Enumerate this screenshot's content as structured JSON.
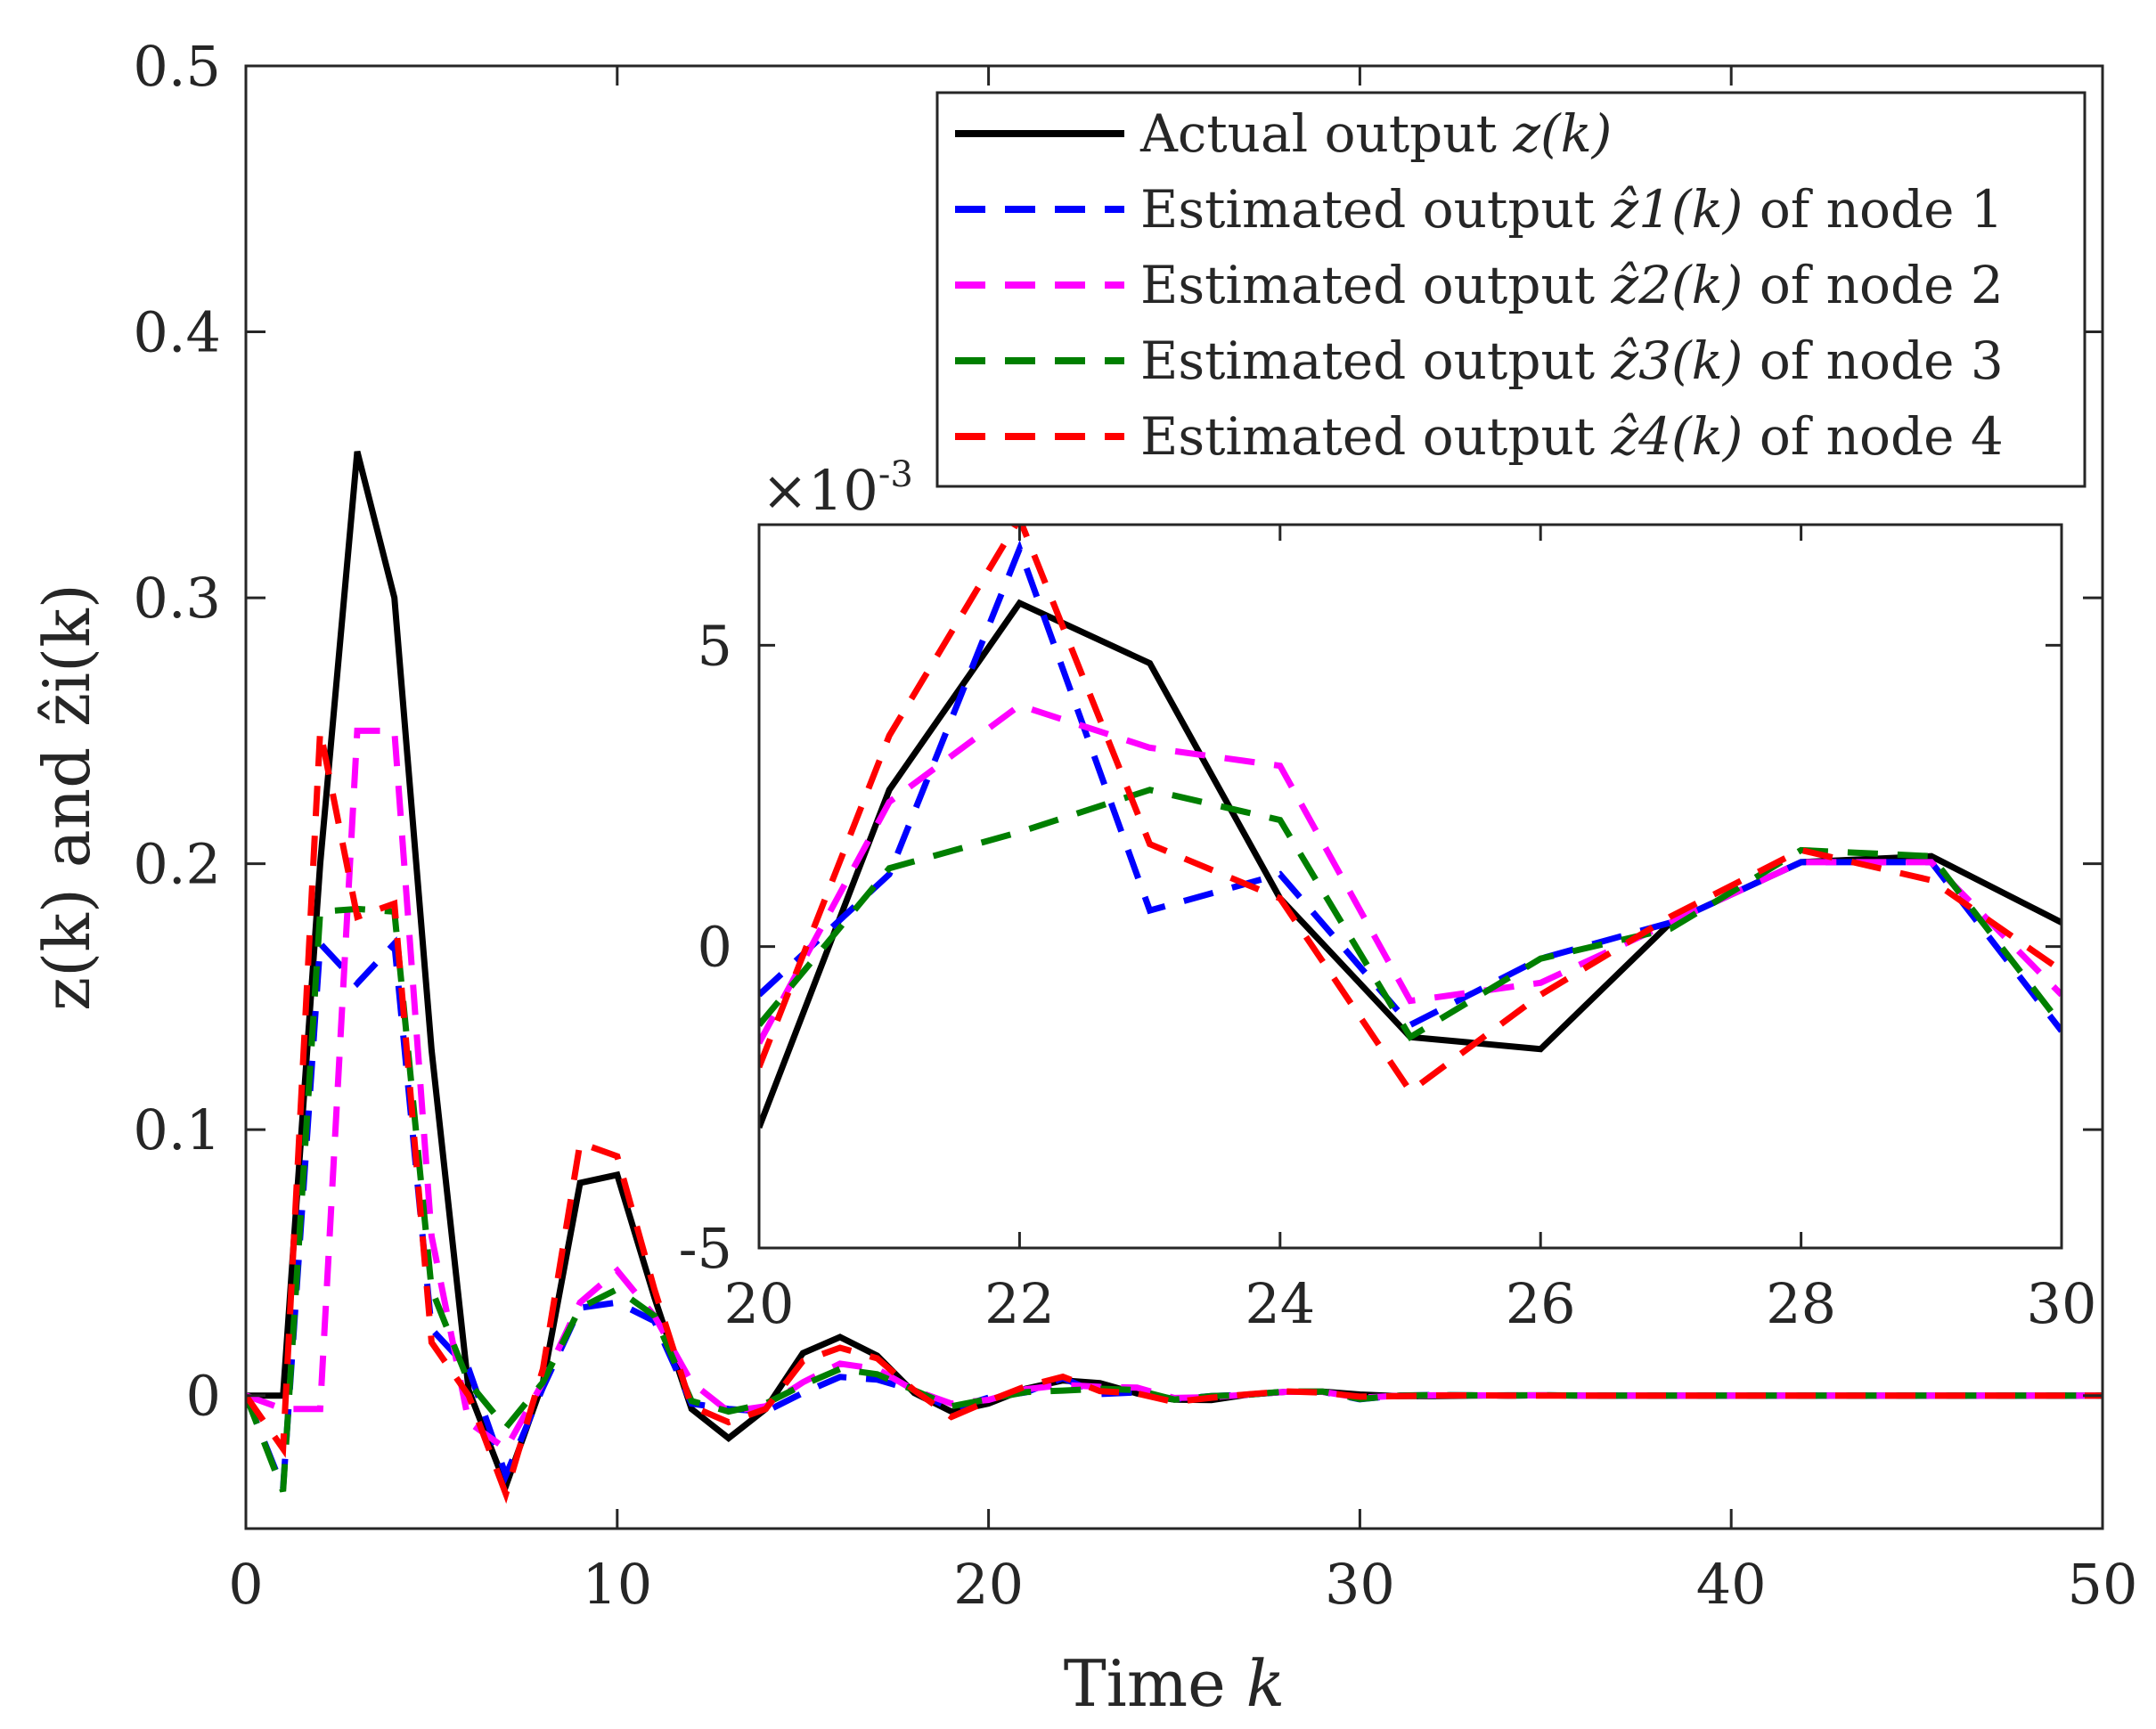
{
  "chart_data": [
    {
      "type": "line",
      "name": "main-plot",
      "xlabel_text": "Time",
      "xlabel_var": "k",
      "ylabel_text": "z(k) and ẑi(k)",
      "xlim": [
        0,
        50
      ],
      "ylim": [
        -0.05,
        0.5
      ],
      "xticks": [
        0,
        10,
        20,
        30,
        40,
        50
      ],
      "xtick_labels": [
        "0",
        "10",
        "20",
        "30",
        "40",
        "50"
      ],
      "yticks": [
        0,
        0.1,
        0.2,
        0.3,
        0.4,
        0.5
      ],
      "ytick_labels": [
        "0",
        "0.1",
        "0.2",
        "0.3",
        "0.4",
        "0.5"
      ],
      "legend_position": "top-right",
      "x": [
        0,
        1,
        2,
        3,
        4,
        5,
        6,
        7,
        8,
        9,
        10,
        11,
        12,
        13,
        14,
        15,
        16,
        17,
        18,
        19,
        20,
        21,
        22,
        23,
        24,
        25,
        26,
        27,
        28,
        29,
        30,
        31,
        32,
        33,
        34,
        35,
        36,
        37,
        38,
        39,
        40,
        41,
        42,
        43,
        44,
        45,
        46,
        47,
        48,
        49,
        50
      ],
      "series": [
        {
          "name": "Actual output",
          "label_prefix": "Actual output",
          "label_math": "z(k)",
          "label_suffix": "",
          "color": "#000000",
          "dashed": false,
          "values": [
            0,
            0,
            0.2,
            0.355,
            0.3,
            0.13,
            0.002,
            -0.034,
            0.005,
            0.08,
            0.083,
            0.037,
            -0.005,
            -0.016,
            -0.005,
            0.016,
            0.022,
            0.015,
            0.001,
            -0.006,
            -0.003,
            0.0026,
            0.0057,
            0.0047,
            0.0008,
            -0.0015,
            -0.0017,
            0.0004,
            0.0014,
            0.0015,
            0.0004,
            -0.0002,
            -0.0002,
            0,
            0.0001,
            0.0001,
            0,
            0,
            0,
            0,
            0,
            0,
            0,
            0,
            0,
            0,
            0,
            0,
            0,
            0,
            0
          ]
        },
        {
          "name": "Estimated output node 1",
          "label_prefix": "Estimated output",
          "label_math": "ẑ1(k)",
          "label_suffix": "of node 1",
          "color": "#0000FF",
          "dashed": true,
          "values": [
            0,
            -0.035,
            0.17,
            0.155,
            0.17,
            0.025,
            0.01,
            -0.03,
            0.003,
            0.033,
            0.035,
            0.028,
            -0.003,
            -0.005,
            -0.006,
            0.001,
            0.007,
            0.006,
            0.002,
            -0.005,
            -0.0008,
            0.0012,
            0.0066,
            0.0006,
            0.0012,
            -0.0013,
            -0.0002,
            0.0004,
            0.0014,
            0.0014,
            -0.0014,
            0,
            0.0002,
            0.0001,
            0,
            0.0001,
            0,
            0,
            0,
            0,
            0,
            0,
            0,
            0,
            0,
            0,
            0,
            0,
            0,
            0,
            0
          ]
        },
        {
          "name": "Estimated output node 2",
          "label_prefix": "Estimated output",
          "label_math": "ẑ2(k)",
          "label_suffix": "of node 2",
          "color": "#FF00FF",
          "dashed": true,
          "values": [
            0,
            -0.005,
            -0.005,
            0.25,
            0.25,
            0.06,
            -0.01,
            -0.02,
            0.005,
            0.035,
            0.047,
            0.03,
            0.005,
            -0.006,
            -0.004,
            0.005,
            0.012,
            0.01,
            0.002,
            -0.003,
            -0.0016,
            0.0024,
            0.004,
            0.0033,
            0.003,
            -0.0009,
            -0.0006,
            0.0004,
            0.0014,
            0.0014,
            -0.0008,
            -0.0001,
            0.0001,
            0.0001,
            0,
            0.0001,
            0,
            0,
            0,
            0,
            0,
            0,
            0,
            0,
            0,
            0,
            0,
            0,
            0,
            0,
            0
          ]
        },
        {
          "name": "Estimated output node 3",
          "label_prefix": "Estimated output",
          "label_math": "ẑ3(k)",
          "label_suffix": "of node 3",
          "color": "#007F00",
          "dashed": true,
          "values": [
            0,
            -0.036,
            0.182,
            0.183,
            0.182,
            0.04,
            0.005,
            -0.012,
            0.005,
            0.033,
            0.04,
            0.03,
            -0.002,
            -0.006,
            -0.003,
            0.004,
            0.01,
            0.008,
            0.002,
            -0.004,
            -0.0013,
            0.0013,
            0.0019,
            0.0026,
            0.0021,
            -0.0015,
            -0.0002,
            0.0003,
            0.0016,
            0.0015,
            -0.0013,
            0,
            0.0002,
            0.0001,
            0,
            0.0001,
            0,
            0,
            0,
            0,
            0,
            0,
            0,
            0,
            0,
            0,
            0,
            0,
            0,
            0,
            0
          ]
        },
        {
          "name": "Estimated output node 4",
          "label_prefix": "Estimated output",
          "label_math": "ẑ4(k)",
          "label_suffix": "of node 4",
          "color": "#FF0000",
          "dashed": true,
          "values": [
            0,
            -0.02,
            0.25,
            0.18,
            0.185,
            0.02,
            0,
            -0.037,
            0.01,
            0.095,
            0.09,
            0.04,
            -0.004,
            -0.01,
            -0.005,
            0.013,
            0.018,
            0.014,
            0.002,
            -0.008,
            -0.002,
            0.0035,
            0.0071,
            0.0017,
            0.0008,
            -0.0024,
            -0.0008,
            0.0005,
            0.0016,
            0.0011,
            -0.0004,
            -0.0002,
            0,
            0.0001,
            0,
            0,
            0,
            0,
            0,
            0,
            0,
            0,
            0,
            0,
            0,
            0,
            0,
            0,
            0,
            0,
            0
          ]
        }
      ]
    },
    {
      "type": "line",
      "name": "inset-plot",
      "xlim": [
        20,
        30
      ],
      "ylim": [
        -0.005,
        0.007
      ],
      "xticks": [
        20,
        22,
        24,
        26,
        28,
        30
      ],
      "xtick_labels": [
        "20",
        "22",
        "24",
        "26",
        "28",
        "30"
      ],
      "yticks": [
        -0.005,
        0,
        0.005
      ],
      "ytick_labels": [
        "-5",
        "0",
        "5"
      ],
      "exponent_label": "×10",
      "exponent_power": "-3",
      "x": [
        20,
        21,
        22,
        23,
        24,
        25,
        26,
        27,
        28,
        29,
        30
      ],
      "series_ref": "main-plot"
    }
  ]
}
